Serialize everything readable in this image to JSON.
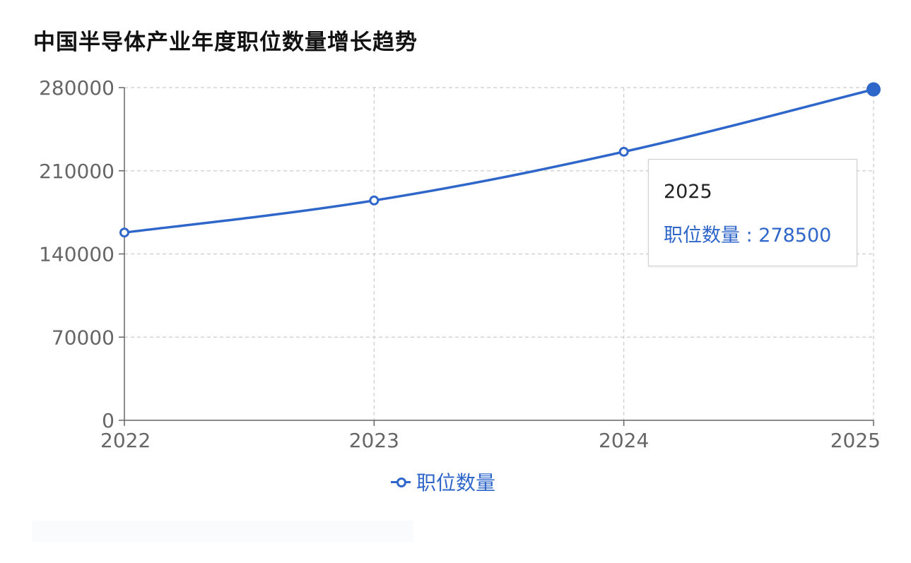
{
  "title": "中国半导体产业年度职位数量增长趋势",
  "tooltip": {
    "x": "2025",
    "series_name": "职位数量",
    "value": "278500"
  },
  "legend": {
    "label": "职位数量"
  },
  "colors": {
    "series": "#2f66c9",
    "grid": "#cccccc",
    "axis": "#666666"
  },
  "chart_data": {
    "type": "line",
    "categories": [
      "2022",
      "2023",
      "2024",
      "2025"
    ],
    "series": [
      {
        "name": "职位数量",
        "values": [
          158000,
          185000,
          226000,
          278500
        ]
      }
    ],
    "yticks": [
      0,
      70000,
      140000,
      210000,
      280000
    ],
    "ylim": [
      0,
      280000
    ],
    "grid": true,
    "legend_position": "bottom-center",
    "highlighted_index": 3
  }
}
